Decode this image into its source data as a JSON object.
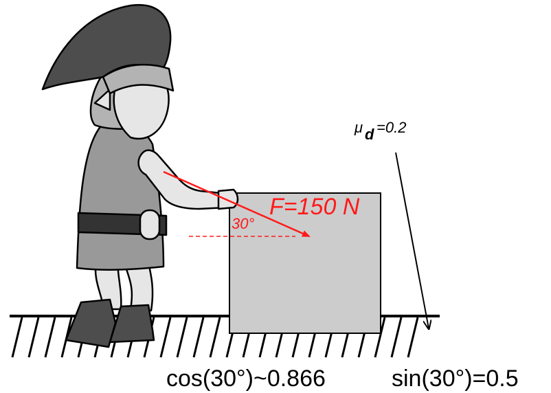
{
  "labels": {
    "force": "F=150 N",
    "angle": "30°",
    "mu_symbol": "μ",
    "mu_subscript": "d",
    "mu_value": "=0.2",
    "cos_formula": "cos(30°)~0.866",
    "sin_formula": "sin(30°)=0.5"
  },
  "colors": {
    "force": "#ff1a1a",
    "box": "#cccccc",
    "hat": "#4d4d4d",
    "tunic": "#999999",
    "skin": "#e6e6e6",
    "hair": "#b3b3b3",
    "boots": "#4d4d4d"
  }
}
